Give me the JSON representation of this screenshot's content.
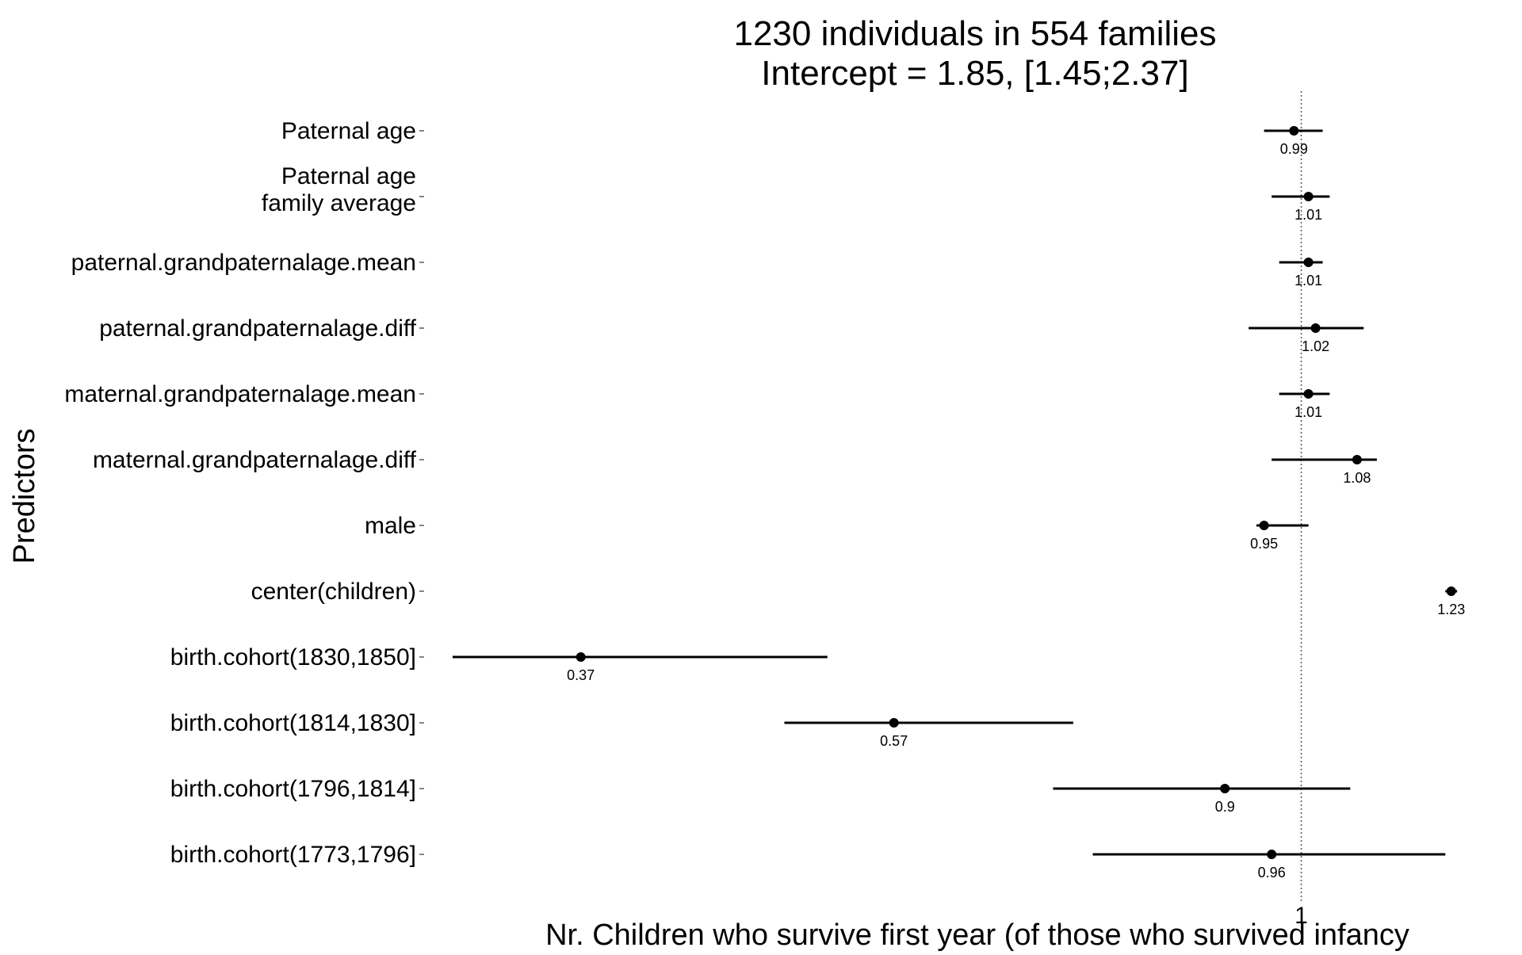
{
  "chart_data": {
    "type": "forest",
    "title": [
      "1230 individuals in 554 families",
      "Intercept = 1.85, [1.45;2.37]"
    ],
    "xlabel": "Nr. Children who survive first year (of those who survived infancy",
    "ylabel": "Predictors",
    "scale": "log",
    "xlim": [
      0.32,
      1.27
    ],
    "reference_line": 1,
    "x_ticks": [
      1
    ],
    "x_tick_labels": [
      "1"
    ],
    "grid": false,
    "colors": {
      "point": "#000000",
      "interval": "#000000",
      "reference": "#555555",
      "text": "#000000"
    },
    "predictors": [
      {
        "label": [
          "Paternal age"
        ],
        "estimate": 0.99,
        "estimate_label": "0.99",
        "ci": [
          0.95,
          1.03
        ]
      },
      {
        "label": [
          "Paternal age",
          "family average"
        ],
        "estimate": 1.01,
        "estimate_label": "1.01",
        "ci": [
          0.96,
          1.04
        ]
      },
      {
        "label": [
          "paternal.grandpaternalage.mean"
        ],
        "estimate": 1.01,
        "estimate_label": "1.01",
        "ci": [
          0.97,
          1.03
        ]
      },
      {
        "label": [
          "paternal.grandpaternalage.diff"
        ],
        "estimate": 1.02,
        "estimate_label": "1.02",
        "ci": [
          0.93,
          1.09
        ]
      },
      {
        "label": [
          "maternal.grandpaternalage.mean"
        ],
        "estimate": 1.01,
        "estimate_label": "1.01",
        "ci": [
          0.97,
          1.04
        ]
      },
      {
        "label": [
          "maternal.grandpaternalage.diff"
        ],
        "estimate": 1.08,
        "estimate_label": "1.08",
        "ci": [
          0.96,
          1.11
        ]
      },
      {
        "label": [
          "male"
        ],
        "estimate": 0.95,
        "estimate_label": "0.95",
        "ci": [
          0.94,
          1.01
        ]
      },
      {
        "label": [
          "center(children)"
        ],
        "estimate": 1.23,
        "estimate_label": "1.23",
        "ci": [
          1.22,
          1.24
        ]
      },
      {
        "label": [
          "birth.cohort(1830,1850]"
        ],
        "estimate": 0.37,
        "estimate_label": "0.37",
        "ci": [
          0.31,
          0.52
        ]
      },
      {
        "label": [
          "birth.cohort(1814,1830]"
        ],
        "estimate": 0.57,
        "estimate_label": "0.57",
        "ci": [
          0.49,
          0.73
        ]
      },
      {
        "label": [
          "birth.cohort(1796,1814]"
        ],
        "estimate": 0.9,
        "estimate_label": "0.9",
        "ci": [
          0.71,
          1.07
        ]
      },
      {
        "label": [
          "birth.cohort(1773,1796]"
        ],
        "estimate": 0.96,
        "estimate_label": "0.96",
        "ci": [
          0.75,
          1.22
        ]
      }
    ]
  }
}
